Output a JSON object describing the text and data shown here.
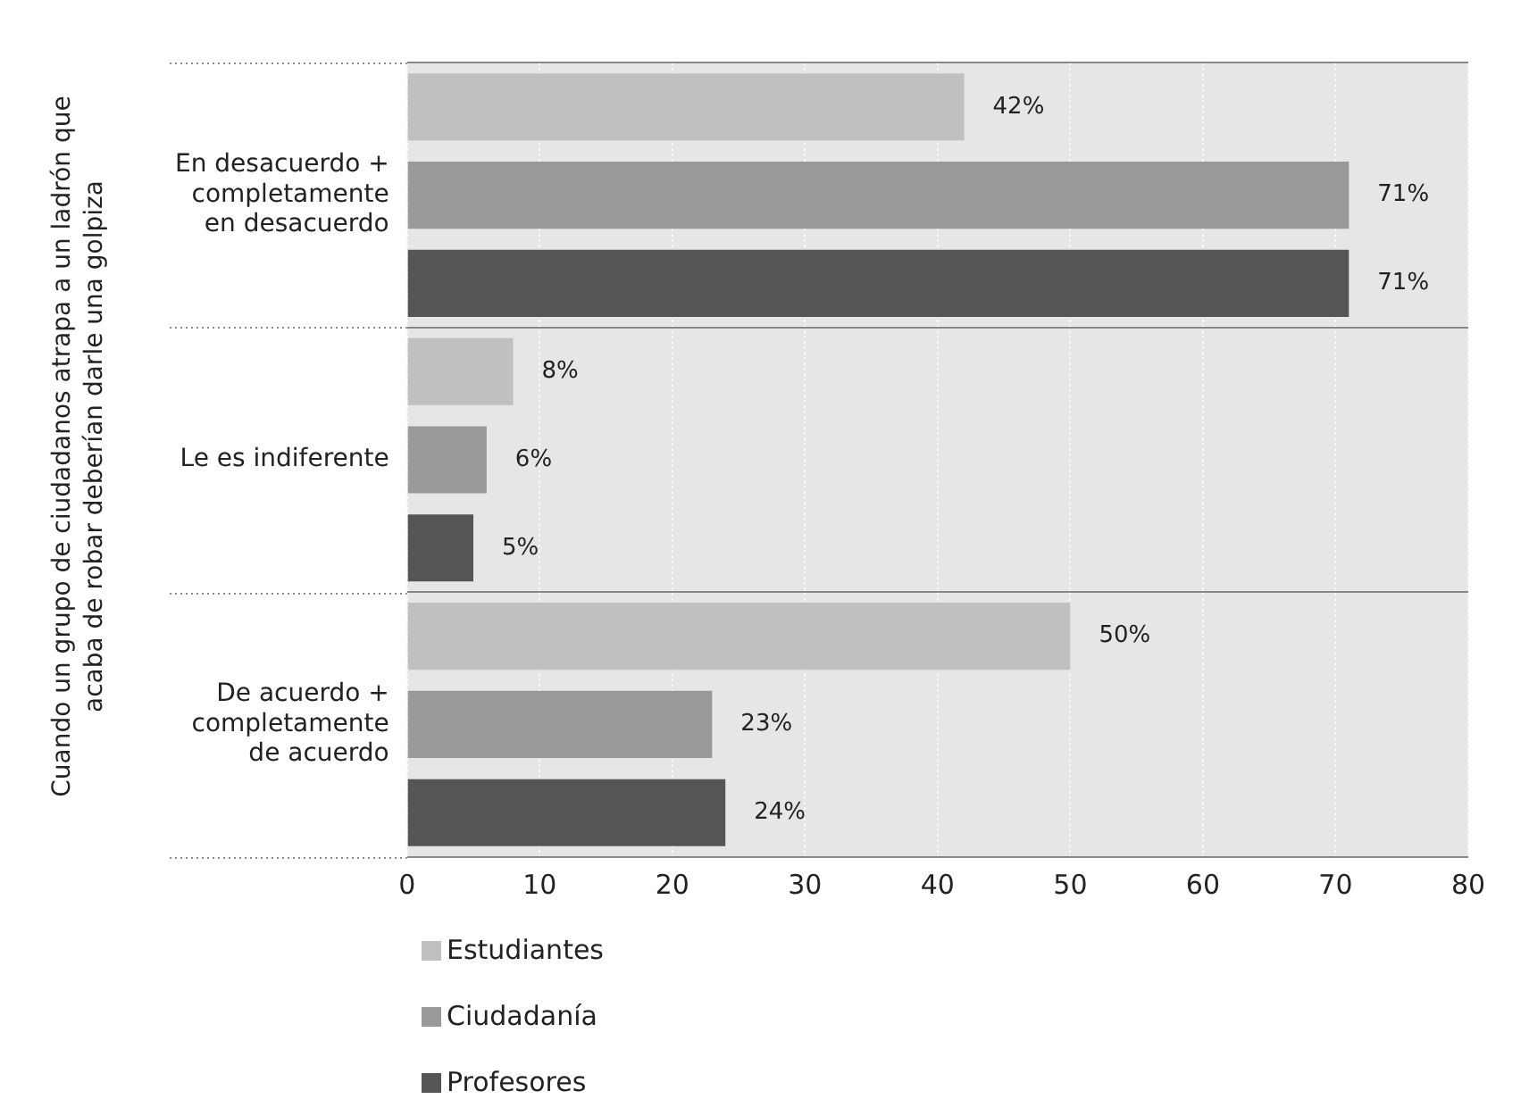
{
  "chart_data": {
    "type": "bar",
    "orientation": "horizontal",
    "ylabel": "Cuando un grupo de ciudadanos atrapa a un ladrón que acaba de robar deberían darle una golpiza",
    "categories": [
      "En desacuerdo + completamente en desacuerdo",
      "Le es indiferente",
      "De acuerdo + completamente de acuerdo"
    ],
    "series": [
      {
        "name": "Estudiantes",
        "color": "#c0c0c0",
        "values": [
          42,
          8,
          50
        ],
        "value_labels": [
          "42%",
          "8%",
          "50%"
        ]
      },
      {
        "name": "Ciudadanía",
        "color": "#999999",
        "values": [
          71,
          6,
          23
        ],
        "value_labels": [
          "71%",
          "6%",
          "23%"
        ]
      },
      {
        "name": "Profesores",
        "color": "#555555",
        "values": [
          71,
          5,
          24
        ],
        "value_labels": [
          "71%",
          "5%",
          "24%"
        ]
      }
    ],
    "xlim": [
      0,
      80
    ],
    "xticks": [
      0,
      10,
      20,
      30,
      40,
      50,
      60,
      70,
      80
    ],
    "grid": true,
    "legend": "bottom"
  }
}
